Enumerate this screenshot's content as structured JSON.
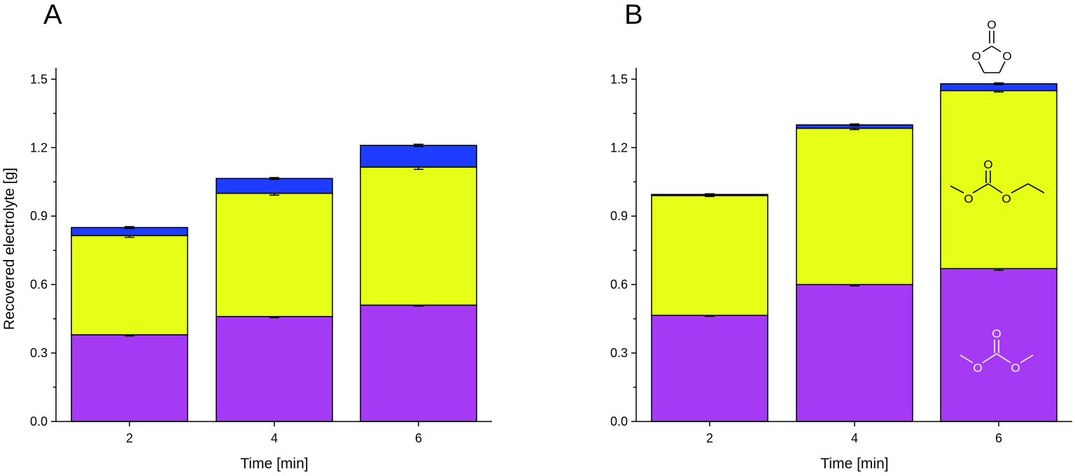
{
  "figure": {
    "background": "#ffffff"
  },
  "colors": {
    "DMC": "#a53af5",
    "EMC": "#e5ff16",
    "EC": "#1e3cff"
  },
  "chart_data": [
    {
      "panel": "A",
      "type": "bar",
      "stacked": true,
      "xlabel": "Time [min]",
      "ylabel": "Recovered electrolyte [g]",
      "categories": [
        "2",
        "4",
        "6"
      ],
      "ylim": [
        0,
        1.55
      ],
      "yticks": [
        0.0,
        0.3,
        0.6,
        0.9,
        1.2,
        1.5
      ],
      "ytick_labels": [
        "0.0",
        "0.3",
        "0.6",
        "0.9",
        "1.2",
        "1.5"
      ],
      "series": [
        {
          "name": "DMC",
          "values": [
            0.38,
            0.46,
            0.51
          ],
          "errors": [
            0.005,
            0.005,
            0.004
          ]
        },
        {
          "name": "EMC",
          "values": [
            0.435,
            0.54,
            0.605
          ],
          "errors": [
            0.008,
            0.008,
            0.01
          ]
        },
        {
          "name": "EC",
          "values": [
            0.035,
            0.065,
            0.095
          ],
          "errors": [
            0.004,
            0.004,
            0.005
          ]
        }
      ]
    },
    {
      "panel": "B",
      "type": "bar",
      "stacked": true,
      "xlabel": "Time [min]",
      "ylabel": "",
      "categories": [
        "2",
        "4",
        "6"
      ],
      "ylim": [
        0,
        1.55
      ],
      "yticks": [
        0.0,
        0.3,
        0.6,
        0.9,
        1.2,
        1.5
      ],
      "ytick_labels": [
        "0.0",
        "0.3",
        "0.6",
        "0.9",
        "1.2",
        "1.5"
      ],
      "series": [
        {
          "name": "DMC",
          "values": [
            0.465,
            0.6,
            0.67
          ],
          "errors": [
            0.004,
            0.006,
            0.007
          ]
        },
        {
          "name": "EMC",
          "values": [
            0.525,
            0.685,
            0.78
          ],
          "errors": [
            0.004,
            0.006,
            0.006
          ]
        },
        {
          "name": "EC",
          "values": [
            0.005,
            0.015,
            0.03
          ],
          "errors": [
            0.003,
            0.004,
            0.004
          ]
        }
      ]
    }
  ],
  "molecules": {
    "oxygen_label": "O"
  }
}
